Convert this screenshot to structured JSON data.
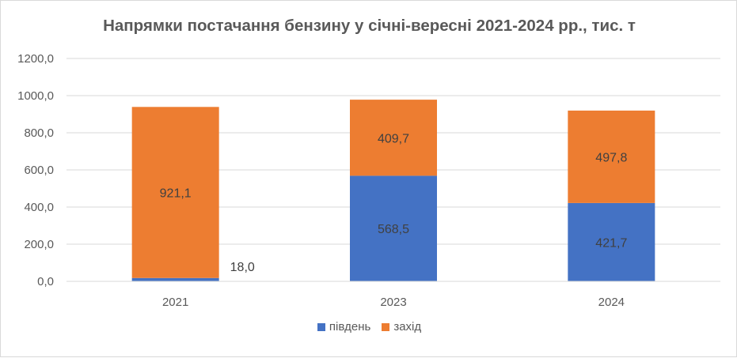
{
  "chart_data": {
    "type": "bar",
    "stacked": true,
    "title": "Напрямки постачання бензину у січні-вересні 2021-2024 рр., тис. т",
    "categories": [
      "2021",
      "2023",
      "2024"
    ],
    "series": [
      {
        "name": "південь",
        "color": "#4472c4",
        "values": [
          18.0,
          568.5,
          421.7
        ],
        "labels": [
          "18,0",
          "568,5",
          "421,7"
        ]
      },
      {
        "name": "захід",
        "color": "#ed7d31",
        "values": [
          921.1,
          409.7,
          497.8
        ],
        "labels": [
          "921,1",
          "409,7",
          "497,8"
        ]
      }
    ],
    "ylim": [
      0,
      1200
    ],
    "y_ticks": [
      0,
      200,
      400,
      600,
      800,
      1000,
      1200
    ],
    "y_tick_labels": [
      "0,0",
      "200,0",
      "400,0",
      "600,0",
      "800,0",
      "1000,0",
      "1200,0"
    ],
    "grid": true,
    "legend_position": "bottom"
  }
}
